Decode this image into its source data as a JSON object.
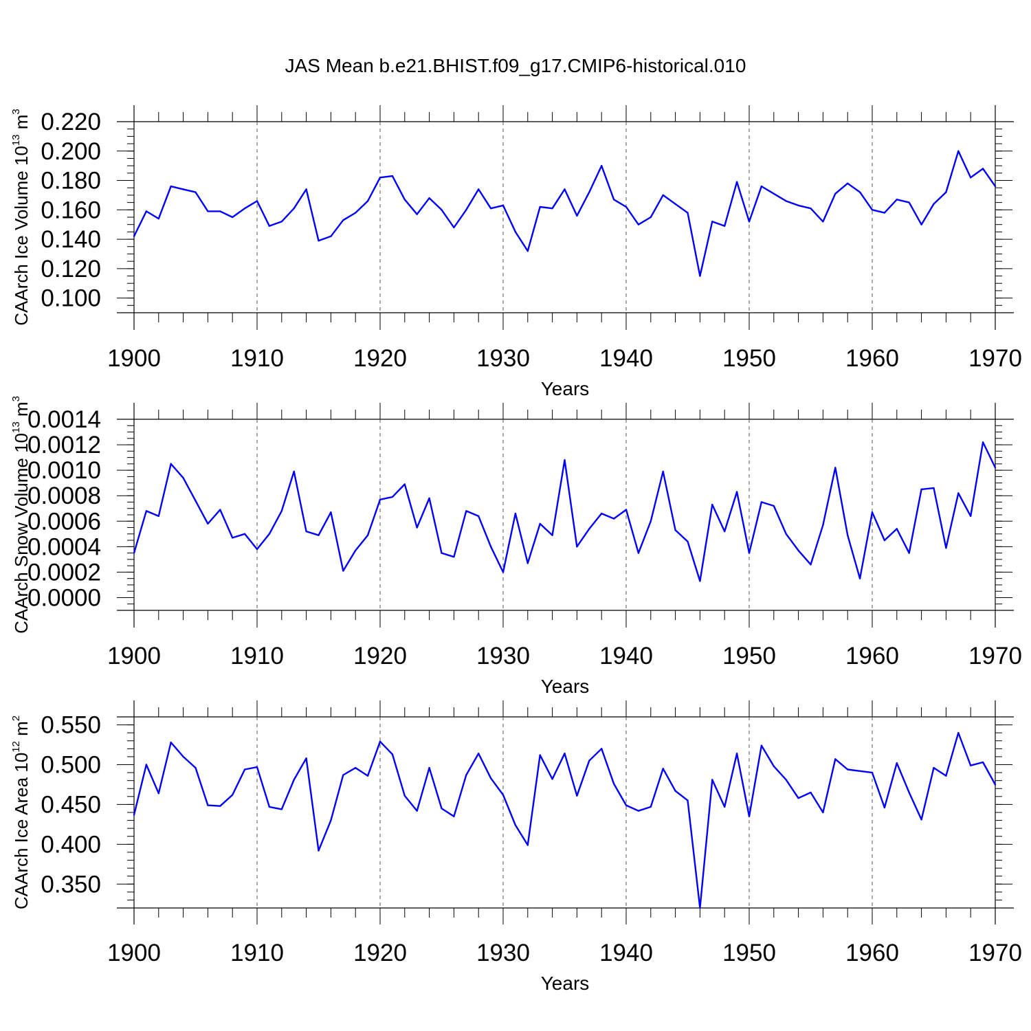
{
  "title": "JAS Mean b.e21.BHIST.f09_g17.CMIP6-historical.010",
  "chart_data": [
    {
      "type": "line",
      "ylabel": {
        "text": "CAArch Ice Volume 10",
        "exp": "13",
        "unit": " m",
        "unit_exp": "3"
      },
      "xlabel": "Years",
      "xlim": [
        1900,
        1970
      ],
      "ylim": [
        0.09,
        0.22
      ],
      "xticks": [
        1900,
        1910,
        1920,
        1930,
        1940,
        1950,
        1960,
        1970
      ],
      "yticks": [
        0.1,
        0.12,
        0.14,
        0.16,
        0.18,
        0.2,
        0.22
      ],
      "ytick_labels": [
        "0.100",
        "0.120",
        "0.140",
        "0.160",
        "0.180",
        "0.200",
        "0.220"
      ],
      "x_tick_labels": [
        "1900",
        "1910",
        "1920",
        "1930",
        "1940",
        "1950",
        "1960",
        "1970"
      ],
      "y_minor_step": 0.005,
      "x_minor_step": 2,
      "x": [
        1900,
        1901,
        1902,
        1903,
        1904,
        1905,
        1906,
        1907,
        1908,
        1909,
        1910,
        1911,
        1912,
        1913,
        1914,
        1915,
        1916,
        1917,
        1918,
        1919,
        1920,
        1921,
        1922,
        1923,
        1924,
        1925,
        1926,
        1927,
        1928,
        1929,
        1930,
        1931,
        1932,
        1933,
        1934,
        1935,
        1936,
        1937,
        1938,
        1939,
        1940,
        1941,
        1942,
        1943,
        1944,
        1945,
        1946,
        1947,
        1948,
        1949,
        1950,
        1951,
        1952,
        1953,
        1954,
        1955,
        1956,
        1957,
        1958,
        1959,
        1960,
        1961,
        1962,
        1963,
        1964,
        1965,
        1966,
        1967,
        1968,
        1969,
        1970
      ],
      "values": [
        0.142,
        0.159,
        0.154,
        0.176,
        0.174,
        0.172,
        0.159,
        0.159,
        0.155,
        0.161,
        0.166,
        0.149,
        0.152,
        0.161,
        0.174,
        0.139,
        0.142,
        0.153,
        0.158,
        0.166,
        0.182,
        0.183,
        0.167,
        0.157,
        0.168,
        0.16,
        0.148,
        0.16,
        0.174,
        0.161,
        0.163,
        0.145,
        0.132,
        0.162,
        0.161,
        0.174,
        0.156,
        0.172,
        0.19,
        0.167,
        0.162,
        0.15,
        0.155,
        0.17,
        0.164,
        0.158,
        0.115,
        0.152,
        0.149,
        0.179,
        0.152,
        0.176,
        0.171,
        0.166,
        0.163,
        0.161,
        0.152,
        0.171,
        0.178,
        0.172,
        0.16,
        0.158,
        0.167,
        0.165,
        0.15,
        0.164,
        0.172,
        0.2,
        0.182,
        0.188,
        0.176
      ]
    },
    {
      "type": "line",
      "ylabel": {
        "text": "CAArch Snow Volume 10",
        "exp": "13",
        "unit": " m",
        "unit_exp": "3"
      },
      "xlabel": "Years",
      "xlim": [
        1900,
        1970
      ],
      "ylim": [
        -0.0001,
        0.0014
      ],
      "xticks": [
        1900,
        1910,
        1920,
        1930,
        1940,
        1950,
        1960,
        1970
      ],
      "yticks": [
        0,
        0.0002,
        0.0004,
        0.0006,
        0.0008,
        0.001,
        0.0012,
        0.0014
      ],
      "ytick_labels": [
        "0.0000",
        "0.0002",
        "0.0004",
        "0.0006",
        "0.0008",
        "0.0010",
        "0.0012",
        "0.0014"
      ],
      "x_tick_labels": [
        "1900",
        "1910",
        "1920",
        "1930",
        "1940",
        "1950",
        "1960",
        "1970"
      ],
      "y_minor_step": 5e-05,
      "x_minor_step": 2,
      "x": [
        1900,
        1901,
        1902,
        1903,
        1904,
        1905,
        1906,
        1907,
        1908,
        1909,
        1910,
        1911,
        1912,
        1913,
        1914,
        1915,
        1916,
        1917,
        1918,
        1919,
        1920,
        1921,
        1922,
        1923,
        1924,
        1925,
        1926,
        1927,
        1928,
        1929,
        1930,
        1931,
        1932,
        1933,
        1934,
        1935,
        1936,
        1937,
        1938,
        1939,
        1940,
        1941,
        1942,
        1943,
        1944,
        1945,
        1946,
        1947,
        1948,
        1949,
        1950,
        1951,
        1952,
        1953,
        1954,
        1955,
        1956,
        1957,
        1958,
        1959,
        1960,
        1961,
        1962,
        1963,
        1964,
        1965,
        1966,
        1967,
        1968,
        1969,
        1970
      ],
      "values": [
        0.00035,
        0.00068,
        0.00064,
        0.00105,
        0.00094,
        0.00076,
        0.00058,
        0.00069,
        0.00047,
        0.0005,
        0.00038,
        0.0005,
        0.00068,
        0.00099,
        0.00052,
        0.00049,
        0.00067,
        0.00021,
        0.00037,
        0.00049,
        0.00077,
        0.00079,
        0.00089,
        0.00055,
        0.00078,
        0.00035,
        0.00032,
        0.00068,
        0.00064,
        0.0004,
        0.0002,
        0.00066,
        0.00027,
        0.00058,
        0.00049,
        0.00108,
        0.0004,
        0.00054,
        0.00066,
        0.00062,
        0.00069,
        0.00035,
        0.0006,
        0.00099,
        0.00053,
        0.00044,
        0.00013,
        0.00073,
        0.00052,
        0.00083,
        0.00035,
        0.00075,
        0.00072,
        0.0005,
        0.00037,
        0.00026,
        0.00057,
        0.00102,
        0.00049,
        0.00015,
        0.00067,
        0.00045,
        0.00054,
        0.00035,
        0.00085,
        0.00086,
        0.00039,
        0.00082,
        0.00064,
        0.00122,
        0.00102
      ]
    },
    {
      "type": "line",
      "ylabel": {
        "text": "CAArch Ice Area 10",
        "exp": "12",
        "unit": " m",
        "unit_exp": "2"
      },
      "xlabel": "Years",
      "xlim": [
        1900,
        1970
      ],
      "ylim": [
        0.32,
        0.56
      ],
      "xticks": [
        1900,
        1910,
        1920,
        1930,
        1940,
        1950,
        1960,
        1970
      ],
      "yticks": [
        0.35,
        0.4,
        0.45,
        0.5,
        0.55
      ],
      "ytick_labels": [
        "0.350",
        "0.400",
        "0.450",
        "0.500",
        "0.550"
      ],
      "x_tick_labels": [
        "1900",
        "1910",
        "1920",
        "1930",
        "1940",
        "1950",
        "1960",
        "1970"
      ],
      "y_minor_step": 0.01,
      "x_minor_step": 2,
      "x": [
        1900,
        1901,
        1902,
        1903,
        1904,
        1905,
        1906,
        1907,
        1908,
        1909,
        1910,
        1911,
        1912,
        1913,
        1914,
        1915,
        1916,
        1917,
        1918,
        1919,
        1920,
        1921,
        1922,
        1923,
        1924,
        1925,
        1926,
        1927,
        1928,
        1929,
        1930,
        1931,
        1932,
        1933,
        1934,
        1935,
        1936,
        1937,
        1938,
        1939,
        1940,
        1941,
        1942,
        1943,
        1944,
        1945,
        1946,
        1947,
        1948,
        1949,
        1950,
        1951,
        1952,
        1953,
        1954,
        1955,
        1956,
        1957,
        1958,
        1959,
        1960,
        1961,
        1962,
        1963,
        1964,
        1965,
        1966,
        1967,
        1968,
        1969,
        1970
      ],
      "values": [
        0.437,
        0.5,
        0.464,
        0.528,
        0.51,
        0.496,
        0.449,
        0.448,
        0.462,
        0.494,
        0.497,
        0.447,
        0.444,
        0.481,
        0.508,
        0.392,
        0.43,
        0.487,
        0.496,
        0.486,
        0.529,
        0.513,
        0.461,
        0.442,
        0.496,
        0.445,
        0.435,
        0.487,
        0.514,
        0.483,
        0.462,
        0.424,
        0.399,
        0.512,
        0.482,
        0.514,
        0.461,
        0.505,
        0.52,
        0.476,
        0.449,
        0.442,
        0.447,
        0.495,
        0.467,
        0.455,
        0.32,
        0.481,
        0.447,
        0.514,
        0.435,
        0.524,
        0.498,
        0.481,
        0.458,
        0.465,
        0.44,
        0.507,
        0.494,
        0.492,
        0.49,
        0.446,
        0.502,
        0.465,
        0.431,
        0.496,
        0.486,
        0.54,
        0.499,
        0.503,
        0.475
      ]
    }
  ]
}
